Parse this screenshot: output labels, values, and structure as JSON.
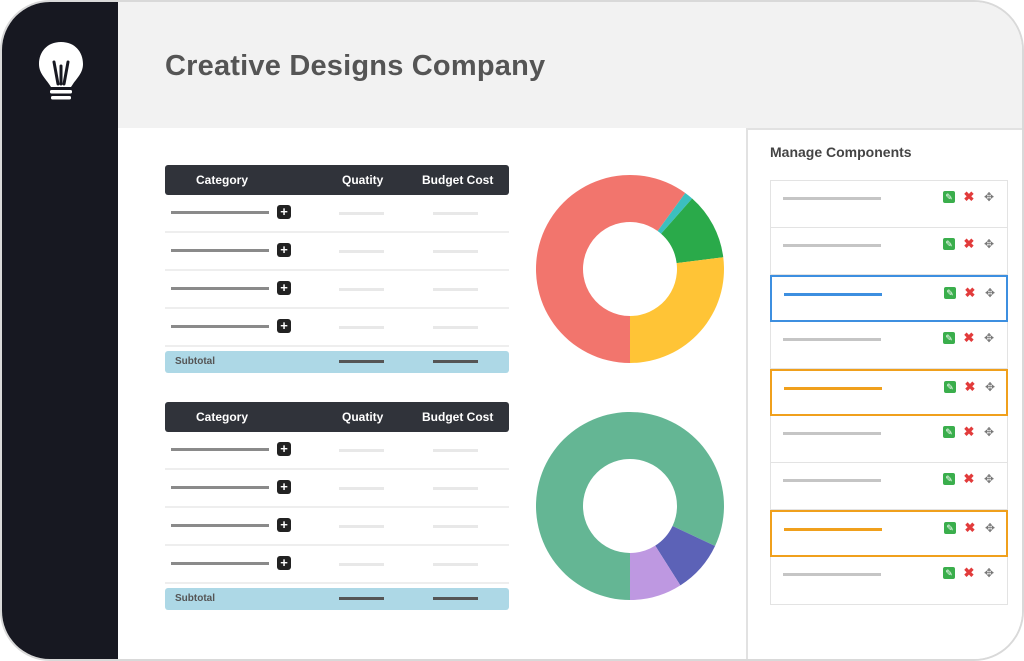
{
  "company": {
    "title": "Creative Designs Company"
  },
  "logo": {
    "icon": "lightbulb-icon"
  },
  "tables": [
    {
      "headers": {
        "category": "Category",
        "quantity": "Quatity",
        "cost": "Budget Cost"
      },
      "row_count": 4,
      "subtotal_label": "Subtotal"
    },
    {
      "headers": {
        "category": "Category",
        "quantity": "Quatity",
        "cost": "Budget Cost"
      },
      "row_count": 4,
      "subtotal_label": "Subtotal"
    }
  ],
  "charts": {
    "chart_data": [
      {
        "type": "pie",
        "slices": [
          {
            "value": 60,
            "color": "#f2756d"
          },
          {
            "value": 1.5,
            "color": "#3cbfbf"
          },
          {
            "value": 11.5,
            "color": "#2aaa4a"
          },
          {
            "value": 27,
            "color": "#ffc436"
          }
        ]
      },
      {
        "type": "pie",
        "slices": [
          {
            "value": 82,
            "color": "#64b694"
          },
          {
            "value": 9,
            "color": "#5c62b7"
          },
          {
            "value": 9,
            "color": "#be98e1"
          }
        ]
      }
    ]
  },
  "panel": {
    "title": "Manage Components",
    "actions": {
      "edit": "edit-icon",
      "delete": "delete-icon",
      "move": "move-icon"
    },
    "rows": [
      {
        "highlight": "none"
      },
      {
        "highlight": "none"
      },
      {
        "highlight": "blue"
      },
      {
        "highlight": "none"
      },
      {
        "highlight": "orange"
      },
      {
        "highlight": "none"
      },
      {
        "highlight": "none"
      },
      {
        "highlight": "orange"
      },
      {
        "highlight": "none"
      }
    ]
  },
  "colors": {
    "sidebar": "#171821",
    "header": "#f2f2f2",
    "table_header": "#30333a",
    "subtotal": "#add8e6",
    "highlight_blue": "#3d8fe0",
    "highlight_orange": "#f0a01c"
  }
}
